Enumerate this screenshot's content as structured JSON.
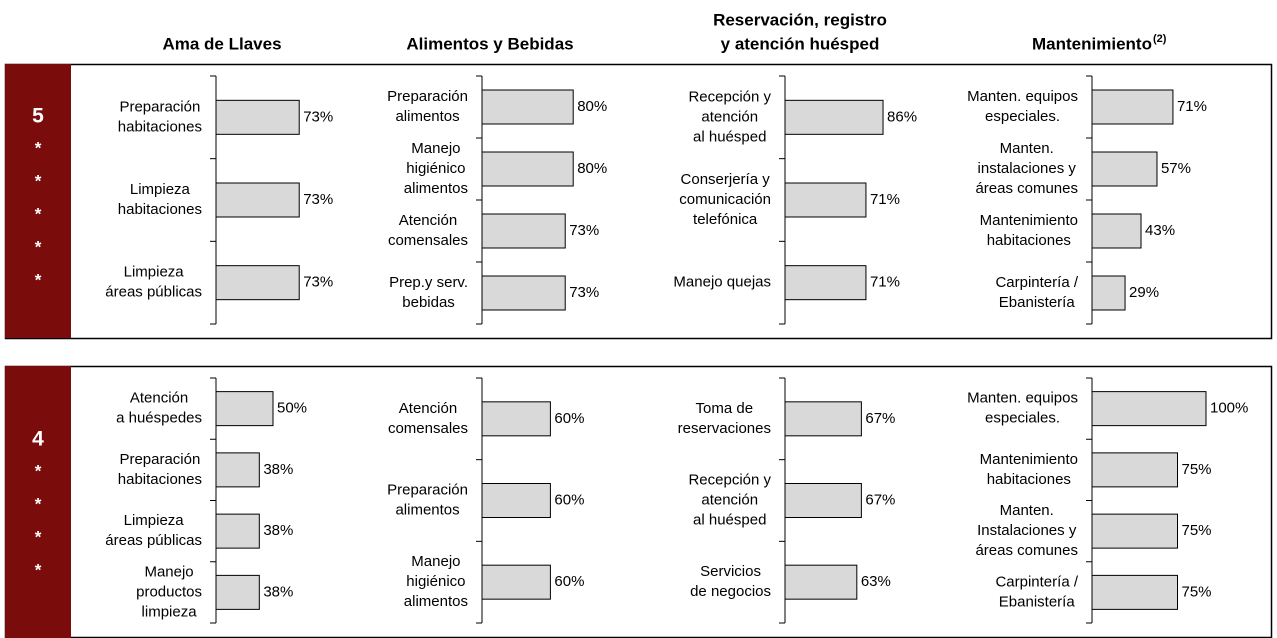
{
  "columns": [
    {
      "title": [
        "Ama de Llaves"
      ]
    },
    {
      "title": [
        "Alimentos y Bebidas"
      ]
    },
    {
      "title": [
        "Reservación, registro",
        "y atención huésped"
      ]
    },
    {
      "title": [
        "Mantenimiento"
      ],
      "note": "(2)"
    }
  ],
  "rows": [
    {
      "rating": "5",
      "stars": [
        "*",
        "*",
        "*",
        "*",
        "*"
      ]
    },
    {
      "rating": "4",
      "stars": [
        "*",
        "*",
        "*",
        "*"
      ]
    }
  ],
  "chart_data": [
    {
      "type": "bar",
      "orientation": "horizontal",
      "color": "#d9d9d9",
      "categories": [
        [
          "Preparación",
          "habitaciones"
        ],
        [
          "Limpieza",
          "habitaciones"
        ],
        [
          "Limpieza",
          "áreas públicas"
        ]
      ],
      "values": [
        73,
        73,
        73
      ],
      "value_labels": [
        "73%",
        "73%",
        "73%"
      ]
    },
    {
      "type": "bar",
      "orientation": "horizontal",
      "color": "#d9d9d9",
      "categories": [
        [
          "Preparación",
          "alimentos"
        ],
        [
          "Manejo",
          "higiénico",
          "alimentos"
        ],
        [
          "Atención",
          "comensales"
        ],
        [
          "Prep.y serv.",
          "bebidas"
        ]
      ],
      "values": [
        80,
        80,
        73,
        73
      ],
      "value_labels": [
        "80%",
        "80%",
        "73%",
        "73%"
      ]
    },
    {
      "type": "bar",
      "orientation": "horizontal",
      "color": "#d9d9d9",
      "categories": [
        [
          "Recepción y",
          "atención",
          "al huésped"
        ],
        [
          "Conserjería y",
          "comunicación",
          "telefónica"
        ],
        [
          "Manejo quejas"
        ]
      ],
      "values": [
        86,
        71,
        71
      ],
      "value_labels": [
        "86%",
        "71%",
        "71%"
      ]
    },
    {
      "type": "bar",
      "orientation": "horizontal",
      "color": "#d9d9d9",
      "categories": [
        [
          "Manten. equipos",
          "especiales."
        ],
        [
          "Manten.",
          "instalaciones y",
          "áreas comunes"
        ],
        [
          "Mantenimiento",
          "habitaciones"
        ],
        [
          "Carpintería /",
          "Ebanistería"
        ]
      ],
      "values": [
        71,
        57,
        43,
        29
      ],
      "value_labels": [
        "71%",
        "57%",
        "43%",
        "29%"
      ]
    },
    {
      "type": "bar",
      "orientation": "horizontal",
      "color": "#d9d9d9",
      "categories": [
        [
          "Atención",
          "a huéspedes"
        ],
        [
          "Preparación",
          "habitaciones"
        ],
        [
          "Limpieza",
          "áreas públicas"
        ],
        [
          "Manejo",
          "productos",
          "limpieza"
        ]
      ],
      "values": [
        50,
        38,
        38,
        38
      ],
      "value_labels": [
        "50%",
        "38%",
        "38%",
        "38%"
      ]
    },
    {
      "type": "bar",
      "orientation": "horizontal",
      "color": "#d9d9d9",
      "categories": [
        [
          "Atención",
          "comensales"
        ],
        [
          "Preparación",
          "alimentos"
        ],
        [
          "Manejo",
          "higiénico",
          "alimentos"
        ]
      ],
      "values": [
        60,
        60,
        60
      ],
      "value_labels": [
        "60%",
        "60%",
        "60%"
      ]
    },
    {
      "type": "bar",
      "orientation": "horizontal",
      "color": "#d9d9d9",
      "categories": [
        [
          "Toma de",
          "reservaciones"
        ],
        [
          "Recepción y",
          "atención",
          "al huésped"
        ],
        [
          "Servicios",
          "de negocios"
        ]
      ],
      "values": [
        67,
        67,
        63
      ],
      "value_labels": [
        "67%",
        "67%",
        "63%"
      ]
    },
    {
      "type": "bar",
      "orientation": "horizontal",
      "color": "#d9d9d9",
      "categories": [
        [
          "Manten. equipos",
          "especiales."
        ],
        [
          "Mantenimiento",
          "habitaciones"
        ],
        [
          "Manten.",
          "Instalaciones y",
          "áreas comunes"
        ],
        [
          "Carpintería /",
          "Ebanistería"
        ]
      ],
      "values": [
        100,
        75,
        75,
        75
      ],
      "value_labels": [
        "100%",
        "75%",
        "75%",
        "75%"
      ]
    }
  ]
}
